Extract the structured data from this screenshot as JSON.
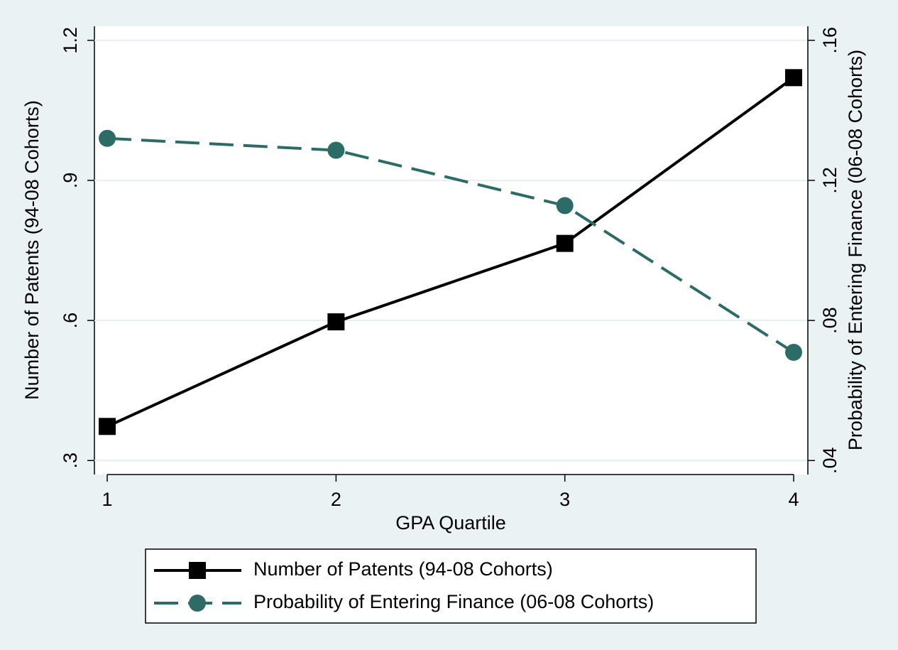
{
  "chart_data": {
    "type": "line",
    "x_label": "GPA Quartile",
    "y_label": "Number of Patents (94-08 Cohorts)",
    "y2_label": "Probability of Entering Finance (06-08 Cohorts)",
    "x": [
      1,
      2,
      3,
      4
    ],
    "xlim": [
      0.944,
      4.062
    ],
    "xticks": [
      1,
      2,
      3,
      4
    ],
    "ylim": [
      0.27,
      1.23
    ],
    "yticks": [
      {
        "value": 0.3,
        "label": ".3"
      },
      {
        "value": 0.6,
        "label": ".6"
      },
      {
        "value": 0.9,
        "label": ".9"
      },
      1.2
    ],
    "y2lim": [
      0.036,
      0.164
    ],
    "y2ticks": [
      {
        "value": 0.04,
        "label": ".04"
      },
      {
        "value": 0.08,
        "label": ".08"
      },
      {
        "value": 0.12,
        "label": ".12"
      },
      {
        "value": 0.16,
        "label": ".16"
      }
    ],
    "grid": true,
    "legend": "bottom",
    "series": [
      {
        "name": "Number of Patents (94-08 Cohorts)",
        "color": "#000000",
        "marker": "square",
        "line_style": "solid",
        "values": [
          0.373,
          0.597,
          0.765,
          1.12
        ]
      },
      {
        "name": "Probability of Entering Finance (06-08 Cohorts)",
        "color": "#2d6b66",
        "marker": "circle",
        "line_style": "dashed",
        "axis": "y2",
        "values": [
          0.132,
          0.1286,
          0.1128,
          0.0709
        ]
      }
    ]
  }
}
